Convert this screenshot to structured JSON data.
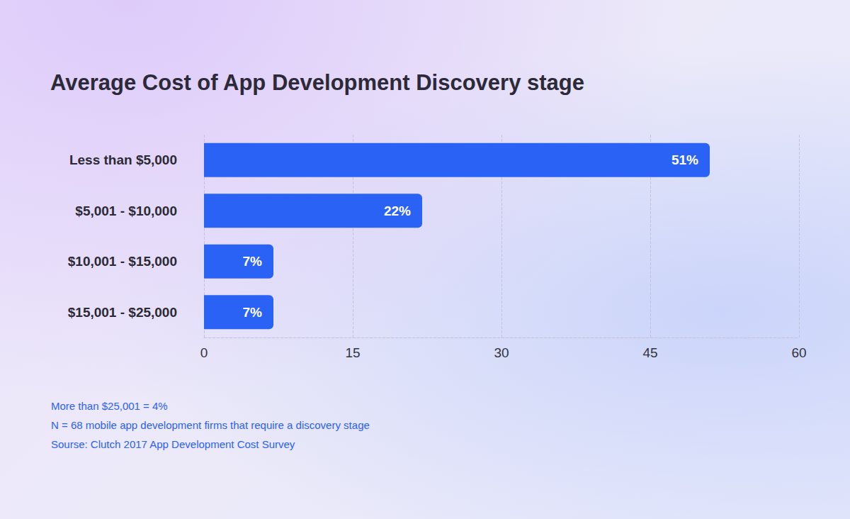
{
  "chart_data": {
    "type": "bar",
    "title": "Average Cost of App Development Discovery stage",
    "orientation": "horizontal",
    "categories": [
      "Less than $5,000",
      "$5,001 - $10,000",
      "$10,001 - $15,000",
      "$15,001 - $25,000"
    ],
    "values": [
      51,
      22,
      7,
      7
    ],
    "value_labels": [
      "51%",
      "22%",
      "7%",
      "7%"
    ],
    "data_labels": true,
    "color": "#2b62f6",
    "xlim": [
      0,
      60
    ],
    "xticks": [
      0,
      15,
      30,
      45,
      60
    ],
    "grid": true,
    "annotations": [
      "More than $25,001 = 4%",
      "N = 68 mobile app development firms that require a discovery stage",
      "Sourse: Clutch 2017 App Development Cost Survey"
    ]
  }
}
